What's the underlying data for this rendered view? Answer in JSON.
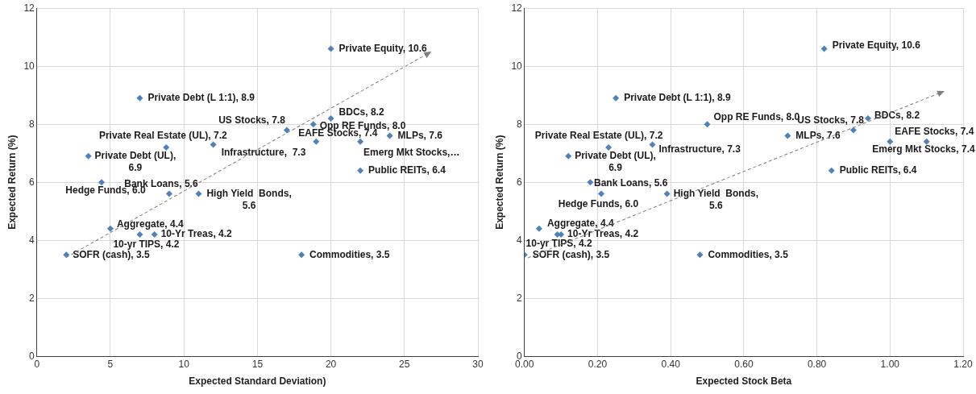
{
  "chart_data": [
    {
      "type": "scatter",
      "xlabel": "Expected Standard Deviation)",
      "ylabel": "Expected Return (%)",
      "xlim": [
        0,
        30
      ],
      "xticks": [
        0,
        5,
        10,
        15,
        20,
        25,
        30
      ],
      "ylim": [
        0,
        12
      ],
      "yticks": [
        0,
        2,
        4,
        6,
        8,
        10,
        12
      ],
      "grid": true,
      "marker": "diamond",
      "series": [
        {
          "color": "#4f81bd",
          "x": [
            20,
            7,
            20,
            18.8,
            17,
            19,
            22,
            24,
            22,
            8.8,
            12,
            3.5,
            4.4,
            9,
            11,
            5,
            7,
            8,
            2,
            18
          ],
          "values": [
            10.6,
            8.9,
            8.2,
            8.0,
            7.8,
            7.4,
            7.4,
            7.6,
            6.4,
            7.2,
            7.3,
            6.9,
            6.0,
            5.6,
            5.6,
            4.4,
            4.2,
            4.2,
            3.5,
            3.5
          ],
          "value_labels": [
            "Private Equity, 10.6",
            "Private Debt (L 1:1), 8.9",
            "BDCs, 8.2",
            "Opp RE Funds, 8.0",
            "US Stocks, 7.8",
            "EAFE Stocks, 7.4",
            "Emerg Mkt Stocks,…",
            "MLPs, 7.6",
            "Public REITs, 6.4",
            "Private Real Estate (UL), 7.2",
            "Infrastructure,  7.3",
            "Private Debt (UL), 6.9",
            "Hedge Funds, 6.0",
            "Bank Loans, 5.6",
            "High Yield  Bonds, 5.6",
            "Aggregate, 4.4",
            "10-yr TIPS, 4.2",
            "10-Yr Treas, 4.2",
            "SOFR (cash), 3.5",
            "Commodities, 3.5"
          ]
        }
      ]
    },
    {
      "type": "scatter",
      "xlabel": "Expected Stock Beta",
      "ylabel": "Expected Return (%)",
      "xlim": [
        0,
        1.2
      ],
      "xticks": [
        {
          "value": 0,
          "label": "0.00"
        },
        {
          "value": 0.2,
          "label": "0.20"
        },
        {
          "value": 0.4,
          "label": "0.40"
        },
        {
          "value": 0.6,
          "label": "0.60"
        },
        {
          "value": 0.8,
          "label": "0.80"
        },
        {
          "value": 1,
          "label": "1.00"
        },
        {
          "value": 1.2,
          "label": "1.20"
        }
      ],
      "ylim": [
        0,
        12
      ],
      "yticks": [
        0,
        2,
        4,
        6,
        8,
        10,
        12
      ],
      "grid": true,
      "marker": "diamond",
      "series": [
        {
          "color": "#4f81bd",
          "x": [
            0.82,
            0.25,
            0.94,
            0.5,
            0.9,
            1.0,
            1.1,
            0.72,
            0.84,
            0.23,
            0.35,
            0.12,
            0.18,
            0.21,
            0.39,
            0.04,
            0.09,
            0.1,
            0,
            0.48
          ],
          "values": [
            10.6,
            8.9,
            8.2,
            8.0,
            7.8,
            7.4,
            7.4,
            7.6,
            6.4,
            7.2,
            7.3,
            6.9,
            6.0,
            5.6,
            5.6,
            4.4,
            4.2,
            4.2,
            3.5,
            3.5
          ],
          "value_labels": [
            "Private Equity, 10.6",
            "Private Debt (L 1:1), 8.9",
            "BDCs, 8.2",
            "Opp RE Funds, 8.0",
            "US Stocks, 7.8",
            "EAFE Stocks, 7.4",
            "Emerg Mkt Stocks, 7.4",
            "MLPs, 7.6",
            "Public REITs, 6.4",
            "Private Real Estate (UL), 7.2",
            "Infrastructure, 7.3",
            "Private Debt (UL), 6.9",
            "Hedge Funds, 6.0",
            "Bank Loans, 5.6",
            "High Yield  Bonds, 5.6",
            "Aggregate, 4.4",
            "10-yr TIPS, 4.2",
            "10-Yr Treas, 4.2",
            "SOFR (cash), 3.5",
            "Commodities, 3.5"
          ]
        }
      ]
    }
  ]
}
